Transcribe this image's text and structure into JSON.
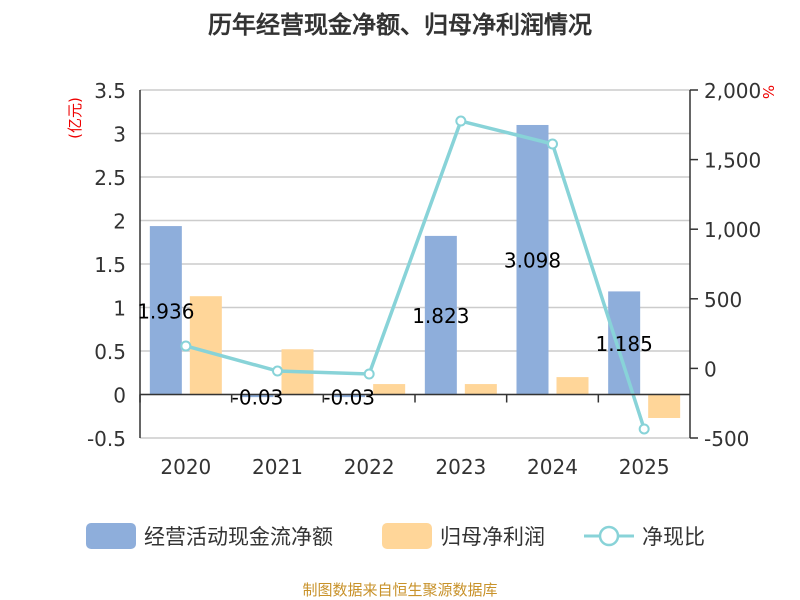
{
  "chart_data": {
    "type": "bar+line",
    "title": "历年经营现金净额、归母净利润情况",
    "categories": [
      "2020",
      "2021",
      "2022",
      "2023",
      "2024",
      "2025"
    ],
    "y_left": {
      "unit": "(亿元)",
      "ylim": [
        -0.5,
        3.5
      ],
      "ticks": [
        "-0.5",
        "0",
        "0.5",
        "1",
        "1.5",
        "2",
        "2.5",
        "3",
        "3.5"
      ],
      "tick_values": [
        -0.5,
        0,
        0.5,
        1,
        1.5,
        2,
        2.5,
        3,
        3.5
      ]
    },
    "y_right": {
      "unit": "%",
      "ylim": [
        -500,
        2000
      ],
      "ticks": [
        "-500",
        "0",
        "500",
        "1,000",
        "1,500",
        "2,000"
      ],
      "tick_values": [
        -500,
        0,
        500,
        1000,
        1500,
        2000
      ]
    },
    "series": [
      {
        "name": "经营活动现金流净额",
        "type": "bar",
        "axis": "left",
        "color": "#8eaedb",
        "values": [
          1.936,
          -0.03,
          -0.03,
          1.823,
          3.098,
          1.185
        ],
        "labels": [
          "1.936",
          "-0.03",
          "-0.03",
          "1.823",
          "3.098",
          "1.185"
        ]
      },
      {
        "name": "归母净利润",
        "type": "bar",
        "axis": "left",
        "color": "#ffd699",
        "values": [
          1.13,
          0.52,
          0.12,
          0.12,
          0.2,
          -0.27
        ]
      },
      {
        "name": "净现比",
        "type": "line",
        "axis": "right",
        "color": "#88d3d8",
        "values": [
          161,
          -19,
          -40,
          1777,
          1612,
          -435
        ]
      }
    ],
    "grid": true,
    "legend": "bottom",
    "source": "制图数据来自恒生聚源数据库"
  }
}
